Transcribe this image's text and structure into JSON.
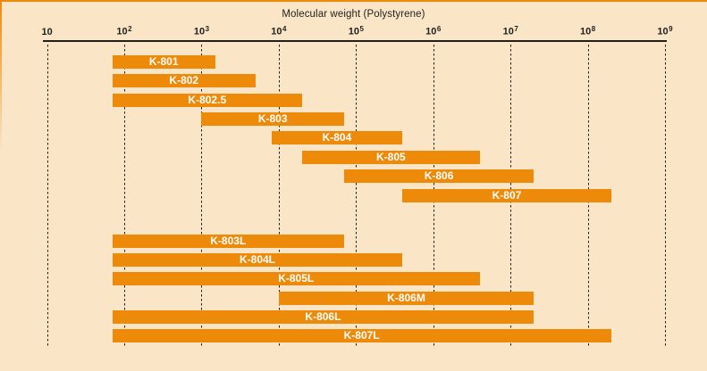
{
  "chart_data": {
    "type": "bar",
    "subtype": "horizontal-log-range",
    "title": "Molecular weight (Polystyrene)",
    "x_axis": {
      "scale": "log10",
      "min": 10,
      "max": 1000000000,
      "ticks": [
        {
          "base": "10",
          "exp": ""
        },
        {
          "base": "10",
          "exp": "2"
        },
        {
          "base": "10",
          "exp": "3"
        },
        {
          "base": "10",
          "exp": "4"
        },
        {
          "base": "10",
          "exp": "5"
        },
        {
          "base": "10",
          "exp": "6"
        },
        {
          "base": "10",
          "exp": "7"
        },
        {
          "base": "10",
          "exp": "8"
        },
        {
          "base": "10",
          "exp": "9"
        }
      ]
    },
    "gridlines": "dashed-vertical-at-each-decade",
    "legend": "none",
    "bars": [
      {
        "label": "K-801",
        "min": 70,
        "max": 1500,
        "group": 1
      },
      {
        "label": "K-802",
        "min": 70,
        "max": 5000,
        "group": 1
      },
      {
        "label": "K-802.5",
        "min": 70,
        "max": 20000,
        "group": 1
      },
      {
        "label": "K-803",
        "min": 1000,
        "max": 70000,
        "group": 1
      },
      {
        "label": "K-804",
        "min": 8000,
        "max": 400000,
        "group": 1
      },
      {
        "label": "K-805",
        "min": 20000,
        "max": 4000000,
        "group": 1
      },
      {
        "label": "K-806",
        "min": 70000,
        "max": 20000000,
        "group": 1
      },
      {
        "label": "K-807",
        "min": 400000,
        "max": 200000000,
        "group": 1
      },
      {
        "label": "K-803L",
        "min": 70,
        "max": 70000,
        "group": 2
      },
      {
        "label": "K-804L",
        "min": 70,
        "max": 400000,
        "group": 2
      },
      {
        "label": "K-805L",
        "min": 70,
        "max": 4000000,
        "group": 2
      },
      {
        "label": "K-806M",
        "min": 10000,
        "max": 20000000,
        "group": 2
      },
      {
        "label": "K-806L",
        "min": 70,
        "max": 20000000,
        "group": 2
      },
      {
        "label": "K-807L",
        "min": 70,
        "max": 200000000,
        "group": 2
      }
    ]
  },
  "colors": {
    "background": "#FAE5C6",
    "bar": "#EE8A0A",
    "bar_label": "#FFFFFF",
    "axis": "#1F1F1F"
  }
}
